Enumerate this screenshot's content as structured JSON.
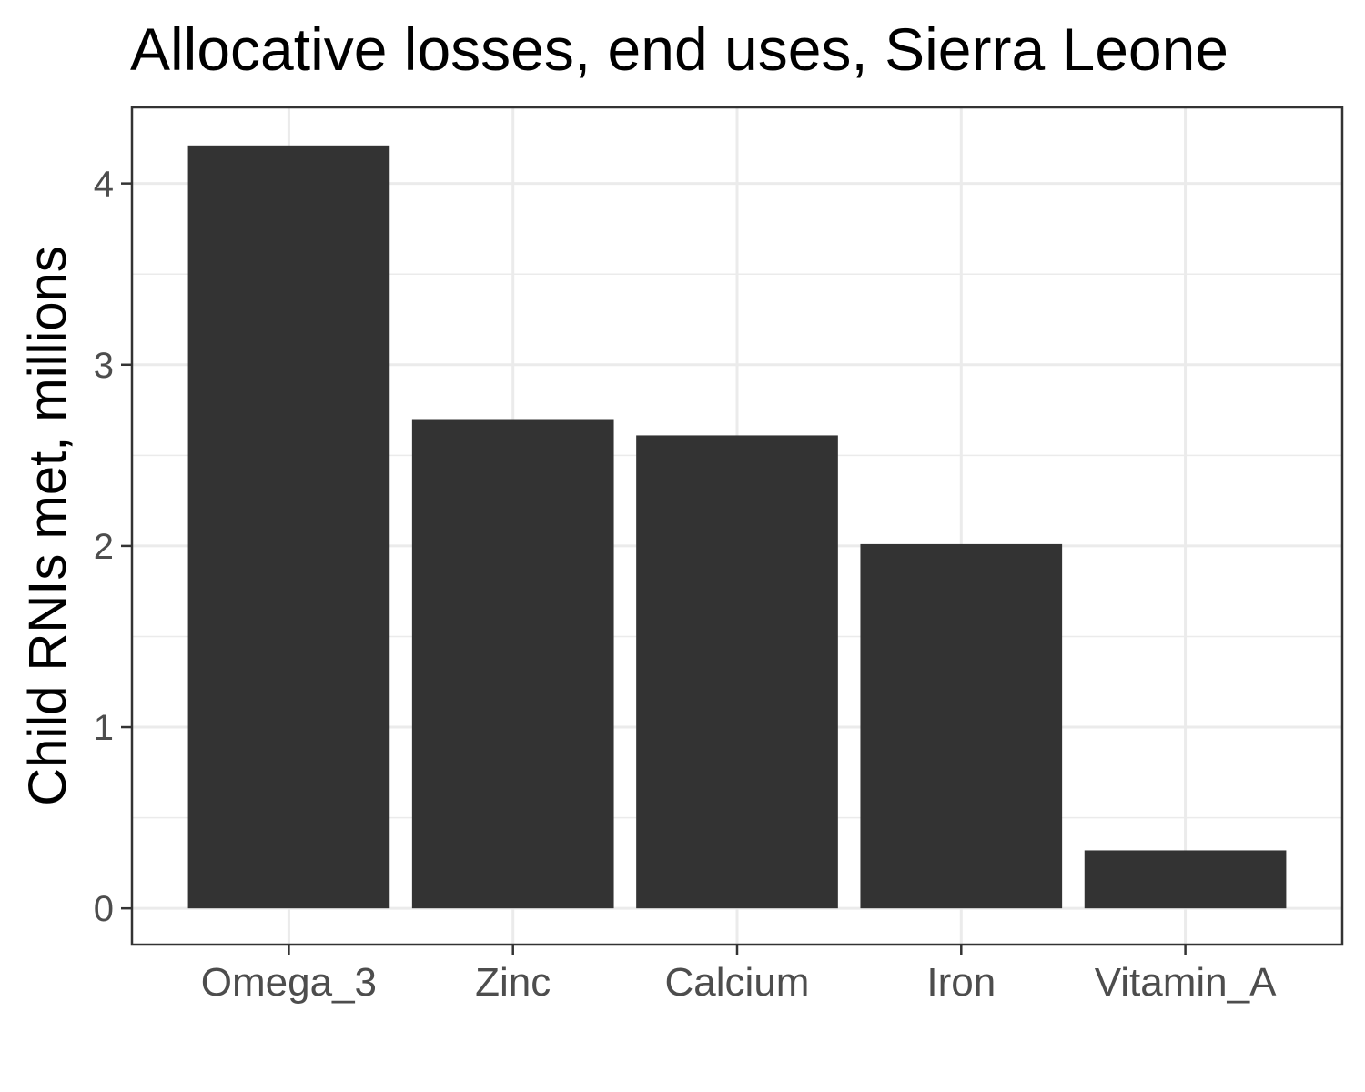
{
  "chart_data": {
    "type": "bar",
    "title": "Allocative losses, end uses, Sierra Leone",
    "xlabel": "",
    "ylabel": "Child RNIs met, millions",
    "categories": [
      "Omega_3",
      "Zinc",
      "Calcium",
      "Iron",
      "Vitamin_A"
    ],
    "values": [
      4.21,
      2.7,
      2.61,
      2.01,
      0.32
    ],
    "ylim": [
      -0.2,
      4.42
    ],
    "yticks": [
      0,
      1,
      2,
      3,
      4
    ],
    "ytick_labels": [
      "0",
      "1",
      "2",
      "3",
      "4"
    ],
    "grid": true,
    "colors": {
      "bar": "#333333",
      "grid": "#ebebeb",
      "panel_border": "#333333",
      "tick_text": "#4d4d4d"
    }
  }
}
